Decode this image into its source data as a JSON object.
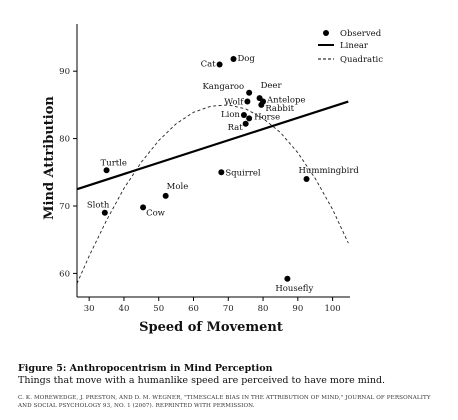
{
  "chart_data": {
    "type": "scatter",
    "xlabel": "Speed of Movement",
    "ylabel": "Mind Attribution",
    "xlim": [
      26.5,
      105
    ],
    "ylim": [
      56.5,
      97
    ],
    "x_ticks": [
      30,
      40,
      50,
      60,
      70,
      80,
      90,
      100
    ],
    "y_ticks": [
      60,
      70,
      80,
      90
    ],
    "grid": false,
    "legend_position": "top-right",
    "legend": [
      {
        "key": "observed",
        "label": "Observed"
      },
      {
        "key": "linear",
        "label": "Linear"
      },
      {
        "key": "quadratic",
        "label": "Quadratic"
      }
    ],
    "points": [
      {
        "label": "Cat",
        "x": 67.5,
        "y": 91.0
      },
      {
        "label": "Dog",
        "x": 71.5,
        "y": 91.8
      },
      {
        "label": "Kangaroo",
        "x": 76.0,
        "y": 86.8
      },
      {
        "label": "Deer",
        "x": 79.0,
        "y": 86.0
      },
      {
        "label": "Antelope",
        "x": 80.0,
        "y": 85.5
      },
      {
        "label": "Wolf",
        "x": 75.5,
        "y": 85.5
      },
      {
        "label": "Rabbit",
        "x": 79.5,
        "y": 85.0
      },
      {
        "label": "Lion",
        "x": 74.5,
        "y": 83.5
      },
      {
        "label": "Horse",
        "x": 76.0,
        "y": 83.0
      },
      {
        "label": "Rat",
        "x": 75.0,
        "y": 82.2
      },
      {
        "label": "Turtle",
        "x": 35.0,
        "y": 75.3
      },
      {
        "label": "Squirrel",
        "x": 68.0,
        "y": 75.0
      },
      {
        "label": "Hummingbird",
        "x": 92.5,
        "y": 74.0
      },
      {
        "label": "Mole",
        "x": 52.0,
        "y": 71.5
      },
      {
        "label": "Cow",
        "x": 45.5,
        "y": 69.8
      },
      {
        "label": "Sloth",
        "x": 34.5,
        "y": 69.0
      },
      {
        "label": "Housefly",
        "x": 87.0,
        "y": 59.2
      }
    ],
    "linear_fit": {
      "x": [
        26.5,
        104.5
      ],
      "y": [
        72.5,
        85.5
      ]
    },
    "quadratic_fit": {
      "x": [
        26.5,
        30,
        35,
        40,
        45,
        50,
        55,
        60,
        65,
        70,
        75,
        80,
        85,
        90,
        95,
        100,
        104.5
      ],
      "y": [
        58.5,
        62.6,
        67.9,
        72.6,
        76.5,
        79.7,
        82.2,
        83.9,
        84.8,
        85.0,
        84.4,
        83.0,
        80.9,
        77.9,
        74.1,
        69.5,
        64.5
      ]
    }
  },
  "caption": {
    "title": "Figure 5: Anthropocentrism in Mind Perception",
    "subtitle": "Things that move with a humanlike speed are perceived to have more mind.",
    "credit": "C. K. MOREWEDGE, J. PRESTON, AND D. M. WEGNER, \"TIMESCALE BIAS IN THE ATTRIBUTION OF MIND,\" JOURNAL OF PERSONALITY AND SOCIAL PSYCHOLOGY 93, NO. 1 (2007). REPRINTED WITH PERMISSION."
  }
}
